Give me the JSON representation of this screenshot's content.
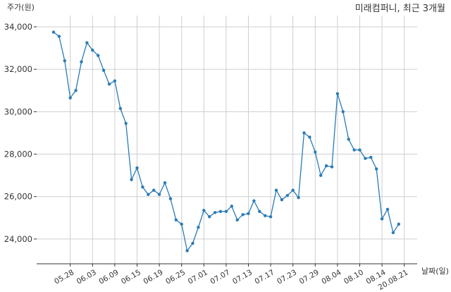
{
  "chart_data": {
    "type": "line",
    "title": "미래컴퍼니, 최근 3개월",
    "ylabel": "주가(원)",
    "xlabel": "날짜(일)",
    "ylim": [
      22900,
      34200
    ],
    "y_ticks": [
      24000,
      26000,
      28000,
      30000,
      32000,
      34000
    ],
    "y_tick_labels": [
      "24,000",
      "26,000",
      "28,000",
      "30,000",
      "32,000",
      "34,000"
    ],
    "x_ticks": [
      {
        "x": 3,
        "label": "05.28"
      },
      {
        "x": 7,
        "label": "06.03"
      },
      {
        "x": 11,
        "label": "06.09"
      },
      {
        "x": 15,
        "label": "06.15"
      },
      {
        "x": 19,
        "label": "06.19"
      },
      {
        "x": 23,
        "label": "06.25"
      },
      {
        "x": 27,
        "label": "07.01"
      },
      {
        "x": 31,
        "label": "07.07"
      },
      {
        "x": 35,
        "label": "07.13"
      },
      {
        "x": 39,
        "label": "07.17"
      },
      {
        "x": 43,
        "label": "07.23"
      },
      {
        "x": 47,
        "label": "07.29"
      },
      {
        "x": 51,
        "label": "08.04"
      },
      {
        "x": 55,
        "label": "08.10"
      },
      {
        "x": 59,
        "label": "08.14"
      },
      {
        "x": 63,
        "label": "20.08.21"
      }
    ],
    "grid": true,
    "line_color": "#2a7bb5",
    "series": [
      {
        "values": [
          33750,
          33550,
          32400,
          30650,
          31000,
          32350,
          33250,
          32900,
          32650,
          31950,
          31300,
          31450,
          30150,
          29450,
          26800,
          27350,
          26450,
          26100,
          26300,
          26100,
          26650,
          25900,
          24900,
          24700,
          23450,
          23800,
          24550,
          25350,
          25050,
          25250,
          25300,
          25300,
          25550,
          24900,
          25150,
          25200,
          25800,
          25300,
          25100,
          25050,
          26300,
          25850,
          26050,
          26300,
          25950,
          29000,
          28800,
          28100,
          27000,
          27450,
          27400,
          30850,
          30000,
          28700,
          28200,
          28200,
          27800,
          27850,
          27300,
          24950,
          25400,
          24300,
          24700
        ]
      }
    ]
  }
}
